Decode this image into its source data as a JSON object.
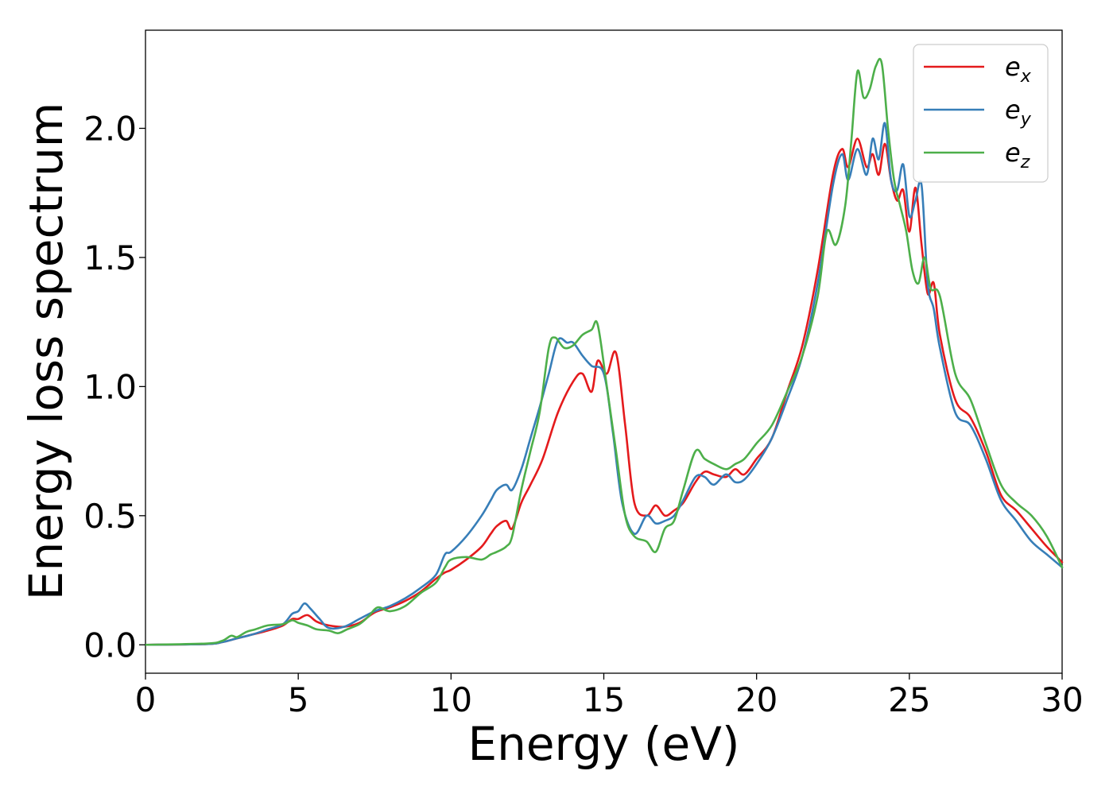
{
  "chart_data": {
    "type": "line",
    "title": "",
    "xlabel": "Energy (eV)",
    "ylabel": "Energy loss spectrum",
    "xlim": [
      0,
      30
    ],
    "ylim": [
      -0.11,
      2.38
    ],
    "xticks": [
      0,
      5,
      10,
      15,
      20,
      25,
      30
    ],
    "xtick_labels": [
      "0",
      "5",
      "10",
      "15",
      "20",
      "25",
      "30"
    ],
    "yticks": [
      0.0,
      0.5,
      1.0,
      1.5,
      2.0
    ],
    "ytick_labels": [
      "0.0",
      "0.5",
      "1.0",
      "1.5",
      "2.0"
    ],
    "grid": false,
    "legend_position": "top-right",
    "series": [
      {
        "name": "e_x",
        "label_base": "e",
        "label_sub": "x",
        "color": "#e41a1c",
        "x": [
          0,
          2,
          2.5,
          3,
          3.5,
          4,
          4.5,
          4.8,
          5,
          5.3,
          5.6,
          6,
          6.5,
          7,
          7.5,
          8,
          8.5,
          9,
          9.5,
          9.8,
          10,
          10.5,
          11,
          11.3,
          11.5,
          11.8,
          12,
          12.3,
          12.6,
          13,
          13.5,
          14,
          14.3,
          14.6,
          14.8,
          15.1,
          15.4,
          15.7,
          16,
          16.4,
          16.7,
          17,
          17.3,
          17.6,
          18,
          18.3,
          18.6,
          19,
          19.3,
          19.6,
          20,
          20.5,
          21,
          21.5,
          22,
          22.5,
          22.8,
          23,
          23.3,
          23.6,
          23.8,
          24,
          24.2,
          24.4,
          24.6,
          24.8,
          25,
          25.2,
          25.4,
          25.6,
          25.8,
          26,
          26.5,
          27,
          27.5,
          28,
          28.5,
          29,
          29.5,
          30
        ],
        "y": [
          0.0,
          0.003,
          0.01,
          0.025,
          0.04,
          0.055,
          0.075,
          0.1,
          0.1,
          0.115,
          0.09,
          0.075,
          0.07,
          0.085,
          0.125,
          0.145,
          0.17,
          0.205,
          0.255,
          0.28,
          0.29,
          0.33,
          0.38,
          0.43,
          0.46,
          0.48,
          0.45,
          0.55,
          0.62,
          0.72,
          0.9,
          1.02,
          1.05,
          0.98,
          1.1,
          1.05,
          1.13,
          0.85,
          0.55,
          0.5,
          0.54,
          0.5,
          0.52,
          0.55,
          0.63,
          0.67,
          0.66,
          0.65,
          0.68,
          0.66,
          0.72,
          0.8,
          0.98,
          1.16,
          1.45,
          1.82,
          1.92,
          1.85,
          1.96,
          1.85,
          1.9,
          1.82,
          1.94,
          1.8,
          1.72,
          1.76,
          1.6,
          1.77,
          1.55,
          1.36,
          1.4,
          1.2,
          0.95,
          0.88,
          0.75,
          0.58,
          0.52,
          0.45,
          0.38,
          0.32
        ]
      },
      {
        "name": "e_y",
        "label_base": "e",
        "label_sub": "y",
        "color": "#377eb8",
        "x": [
          0,
          2,
          2.5,
          3,
          3.5,
          4,
          4.5,
          4.8,
          5,
          5.2,
          5.4,
          5.7,
          6,
          6.5,
          7,
          7.5,
          8,
          8.5,
          9,
          9.5,
          9.8,
          10,
          10.5,
          11,
          11.3,
          11.5,
          11.8,
          12,
          12.3,
          12.6,
          12.9,
          13.2,
          13.5,
          13.8,
          14,
          14.3,
          14.6,
          15,
          15.3,
          15.6,
          16,
          16.4,
          16.7,
          17,
          17.3,
          17.6,
          18,
          18.3,
          18.6,
          19,
          19.3,
          19.6,
          20,
          20.5,
          21,
          21.5,
          22,
          22.5,
          22.8,
          23,
          23.3,
          23.6,
          23.8,
          24,
          24.2,
          24.4,
          24.6,
          24.8,
          25,
          25.2,
          25.4,
          25.6,
          25.8,
          26,
          26.5,
          27,
          27.5,
          28,
          28.5,
          29,
          29.5,
          30
        ],
        "y": [
          0.0,
          0.003,
          0.01,
          0.025,
          0.04,
          0.06,
          0.08,
          0.12,
          0.13,
          0.16,
          0.14,
          0.1,
          0.065,
          0.07,
          0.1,
          0.13,
          0.15,
          0.18,
          0.22,
          0.27,
          0.35,
          0.36,
          0.42,
          0.5,
          0.56,
          0.6,
          0.62,
          0.6,
          0.68,
          0.8,
          0.92,
          1.05,
          1.18,
          1.17,
          1.17,
          1.12,
          1.08,
          1.05,
          0.82,
          0.55,
          0.43,
          0.5,
          0.47,
          0.48,
          0.5,
          0.56,
          0.65,
          0.65,
          0.62,
          0.66,
          0.63,
          0.64,
          0.7,
          0.8,
          0.95,
          1.12,
          1.4,
          1.78,
          1.9,
          1.8,
          1.92,
          1.82,
          1.96,
          1.88,
          2.02,
          1.8,
          1.76,
          1.86,
          1.66,
          1.72,
          1.78,
          1.4,
          1.3,
          1.15,
          0.9,
          0.85,
          0.72,
          0.56,
          0.48,
          0.4,
          0.35,
          0.3
        ]
      },
      {
        "name": "e_z",
        "label_base": "e",
        "label_sub": "z",
        "color": "#4daf4a",
        "x": [
          0,
          2,
          2.5,
          2.8,
          3,
          3.3,
          3.6,
          4,
          4.5,
          4.8,
          5,
          5.3,
          5.6,
          6,
          6.3,
          6.6,
          7,
          7.3,
          7.6,
          8,
          8.5,
          9,
          9.5,
          9.8,
          10,
          10.5,
          11,
          11.3,
          11.5,
          11.8,
          12,
          12.3,
          12.6,
          12.9,
          13.2,
          13.4,
          13.7,
          14,
          14.3,
          14.6,
          14.8,
          15.1,
          15.4,
          15.7,
          16,
          16.4,
          16.7,
          17,
          17.3,
          17.6,
          18,
          18.3,
          18.6,
          19,
          19.3,
          19.6,
          20,
          20.5,
          21,
          21.5,
          22,
          22.3,
          22.6,
          22.9,
          23.1,
          23.3,
          23.5,
          23.7,
          23.9,
          24.1,
          24.3,
          24.5,
          24.7,
          24.9,
          25.1,
          25.3,
          25.5,
          25.7,
          26,
          26.5,
          27,
          27.5,
          28,
          28.5,
          29,
          29.5,
          30
        ],
        "y": [
          0.0,
          0.005,
          0.015,
          0.035,
          0.03,
          0.05,
          0.06,
          0.075,
          0.08,
          0.095,
          0.085,
          0.075,
          0.06,
          0.055,
          0.045,
          0.06,
          0.08,
          0.11,
          0.145,
          0.13,
          0.15,
          0.2,
          0.24,
          0.3,
          0.33,
          0.34,
          0.33,
          0.35,
          0.36,
          0.38,
          0.42,
          0.6,
          0.75,
          0.9,
          1.15,
          1.19,
          1.15,
          1.16,
          1.2,
          1.22,
          1.24,
          1.0,
          0.75,
          0.5,
          0.42,
          0.4,
          0.36,
          0.45,
          0.48,
          0.6,
          0.75,
          0.72,
          0.7,
          0.68,
          0.7,
          0.72,
          0.78,
          0.85,
          0.98,
          1.12,
          1.35,
          1.6,
          1.55,
          1.7,
          1.95,
          2.22,
          2.12,
          2.15,
          2.24,
          2.25,
          2.0,
          1.8,
          1.7,
          1.6,
          1.45,
          1.4,
          1.5,
          1.38,
          1.35,
          1.05,
          0.95,
          0.78,
          0.62,
          0.55,
          0.5,
          0.42,
          0.3
        ]
      }
    ]
  }
}
